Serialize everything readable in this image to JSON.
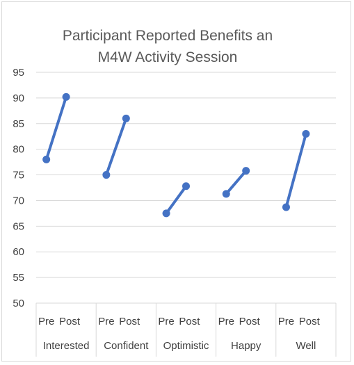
{
  "chart_data": {
    "type": "line",
    "title_lines": [
      "Participant Reported Benefits an",
      "M4W Activity Session"
    ],
    "y_ticks": [
      "95",
      "90",
      "85",
      "80",
      "75",
      "70",
      "65",
      "60",
      "55",
      "50"
    ],
    "ylim": [
      50,
      95
    ],
    "ystep": 5,
    "grid": true,
    "x_sublabels": [
      "Pre",
      "Post"
    ],
    "categories": [
      "Interested",
      "Confident",
      "Optimistic",
      "Happy",
      "Well"
    ],
    "series": [
      {
        "values": [
          {
            "pre": 78.0,
            "post": 90.2
          },
          {
            "pre": 75.0,
            "post": 86.0
          },
          {
            "pre": 67.5,
            "post": 72.8
          },
          {
            "pre": 71.3,
            "post": 75.8
          },
          {
            "pre": 68.7,
            "post": 83.0
          }
        ]
      }
    ],
    "colors": {
      "line": "#4472c4",
      "grid": "#d9d9d9",
      "axis_text": "#404040",
      "title": "#595959"
    }
  }
}
